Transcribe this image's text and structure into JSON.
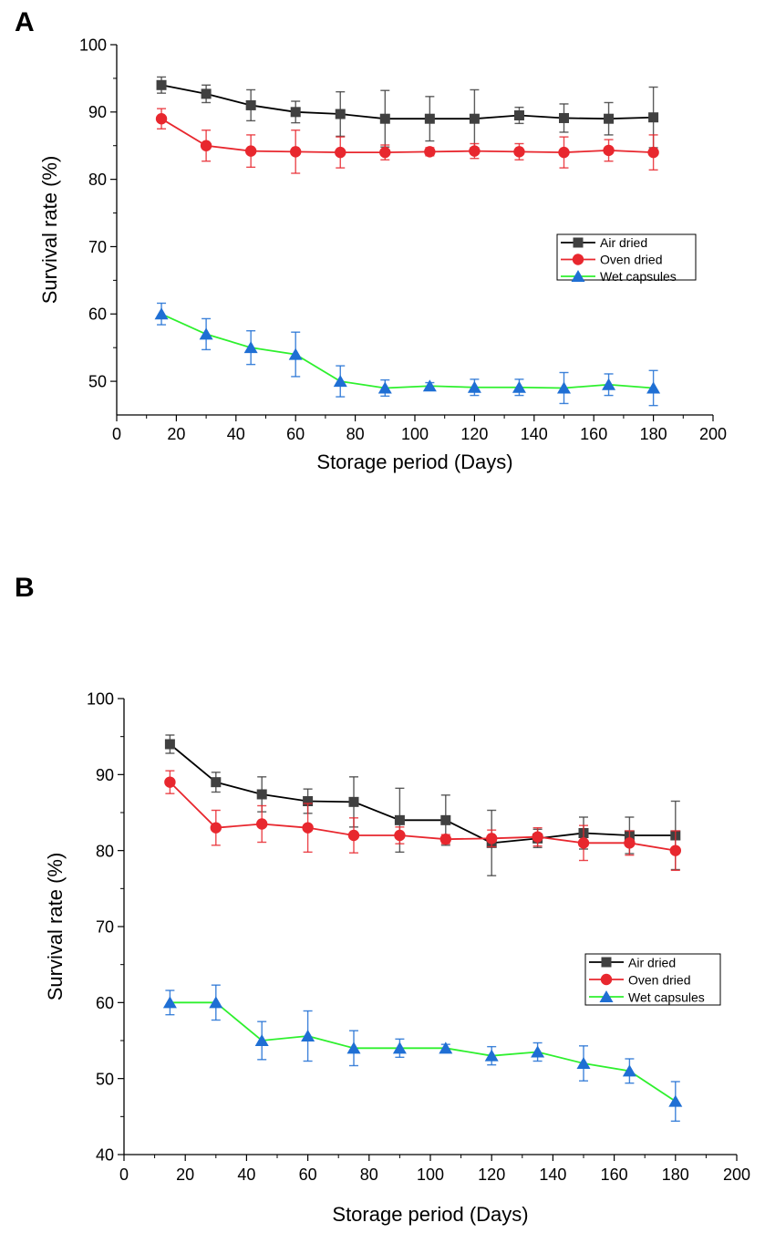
{
  "chart_data": [
    {
      "panel": "A",
      "type": "line",
      "title": "",
      "xlabel": "Storage period (Days)",
      "ylabel": "Survival rate (%)",
      "xlim": [
        0,
        200
      ],
      "ylim": [
        45,
        100
      ],
      "xticks": [
        0,
        20,
        40,
        60,
        80,
        100,
        120,
        140,
        160,
        180,
        200
      ],
      "yticks": [
        50,
        60,
        70,
        80,
        90,
        100
      ],
      "legend_position": "right",
      "x": [
        15,
        30,
        45,
        60,
        75,
        90,
        105,
        120,
        135,
        150,
        165,
        180
      ],
      "series": [
        {
          "name": "Air dried",
          "marker": "square",
          "color": "#000000",
          "marker_color": "#404040",
          "values": [
            94,
            92.7,
            91,
            90,
            89.7,
            89,
            89,
            89,
            89.5,
            89.1,
            89,
            89.2
          ],
          "errors": [
            1.2,
            1.3,
            2.3,
            1.6,
            3.3,
            4.2,
            3.3,
            4.3,
            1.2,
            2.1,
            2.4,
            4.5
          ]
        },
        {
          "name": "Oven dried",
          "marker": "circle",
          "color": "#e8272e",
          "marker_color": "#e8272e",
          "values": [
            89,
            85,
            84.2,
            84.1,
            84,
            84,
            84.1,
            84.2,
            84.1,
            84,
            84.3,
            84
          ],
          "errors": [
            1.5,
            2.3,
            2.4,
            3.2,
            2.3,
            1.1,
            0.6,
            1.1,
            1.2,
            2.3,
            1.6,
            2.6
          ]
        },
        {
          "name": "Wet capsules",
          "marker": "triangle",
          "color": "#2ef02e",
          "marker_color": "#1f6fd4",
          "values": [
            60,
            57,
            55,
            54,
            50,
            49,
            49.3,
            49.1,
            49.1,
            49,
            49.5,
            49
          ],
          "errors": [
            1.6,
            2.3,
            2.5,
            3.3,
            2.3,
            1.2,
            0.5,
            1.2,
            1.2,
            2.3,
            1.6,
            2.6
          ]
        }
      ]
    },
    {
      "panel": "B",
      "type": "line",
      "title": "",
      "xlabel": "Storage period (Days)",
      "ylabel": "Survival rate (%)",
      "xlim": [
        0,
        200
      ],
      "ylim": [
        40,
        100
      ],
      "xticks": [
        0,
        20,
        40,
        60,
        80,
        100,
        120,
        140,
        160,
        180,
        200
      ],
      "yticks": [
        40,
        50,
        60,
        70,
        80,
        90,
        100
      ],
      "legend_position": "right",
      "x": [
        15,
        30,
        45,
        60,
        75,
        90,
        105,
        120,
        135,
        150,
        165,
        180
      ],
      "series": [
        {
          "name": "Air dried",
          "marker": "square",
          "color": "#000000",
          "marker_color": "#404040",
          "values": [
            94,
            89,
            87.4,
            86.5,
            86.4,
            84,
            84,
            81,
            81.6,
            82.3,
            82,
            82
          ],
          "errors": [
            1.2,
            1.3,
            2.3,
            1.6,
            3.3,
            4.2,
            3.3,
            4.3,
            1.2,
            2.1,
            2.4,
            4.5
          ]
        },
        {
          "name": "Oven dried",
          "marker": "circle",
          "color": "#e8272e",
          "marker_color": "#e8272e",
          "values": [
            89,
            83,
            83.5,
            83,
            82,
            82,
            81.5,
            81.6,
            81.8,
            81,
            81,
            80
          ],
          "errors": [
            1.5,
            2.3,
            2.4,
            3.2,
            2.3,
            1.1,
            0.6,
            1.1,
            1.2,
            2.3,
            1.6,
            2.6
          ]
        },
        {
          "name": "Wet capsules",
          "marker": "triangle",
          "color": "#2ef02e",
          "marker_color": "#1f6fd4",
          "values": [
            60,
            60,
            55,
            55.6,
            54,
            54,
            54,
            53,
            53.5,
            52,
            51,
            47
          ],
          "errors": [
            1.6,
            2.3,
            2.5,
            3.3,
            2.3,
            1.2,
            0.5,
            1.2,
            1.2,
            2.3,
            1.6,
            2.6
          ]
        }
      ]
    }
  ]
}
